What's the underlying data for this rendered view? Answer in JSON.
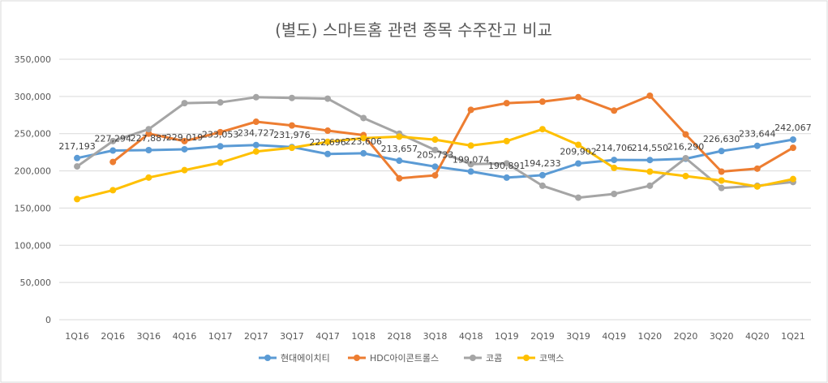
{
  "chart_data": {
    "type": "line",
    "title": "(별도) 스마트홈 관련 종목 수주잔고 비교",
    "xlabel": "",
    "ylabel": "",
    "ylim": [
      0,
      350000
    ],
    "yticks": [
      0,
      50000,
      100000,
      150000,
      200000,
      250000,
      300000,
      350000
    ],
    "ytick_labels": [
      "0",
      "50,000",
      "100,000",
      "150,000",
      "200,000",
      "250,000",
      "300,000",
      "350,000"
    ],
    "grid": true,
    "legend_position": "bottom",
    "categories": [
      "1Q16",
      "2Q16",
      "3Q16",
      "4Q16",
      "1Q17",
      "2Q17",
      "3Q17",
      "4Q17",
      "1Q18",
      "2Q18",
      "3Q18",
      "4Q18",
      "1Q19",
      "2Q19",
      "3Q19",
      "4Q19",
      "1Q20",
      "2Q20",
      "3Q20",
      "4Q20",
      "1Q21"
    ],
    "series": [
      {
        "name": "현대에이치티",
        "color": "#5b9bd5",
        "values": [
          217193,
          227294,
          227887,
          229019,
          233053,
          234727,
          231976,
          222696,
          223606,
          213657,
          205733,
          199074,
          190891,
          194233,
          209902,
          214706,
          214550,
          216290,
          226630,
          233644,
          242067
        ],
        "labels": [
          "217,193",
          "227,294",
          "227,887",
          "229,019",
          "233,053",
          "234,727",
          "231,976",
          "222,696",
          "223,606",
          "213,657",
          "205,733",
          "199,074",
          "190,891",
          "194,233",
          "209,902",
          "214,706",
          "214,550",
          "216,290",
          "226,630",
          "233,644",
          "242,067"
        ]
      },
      {
        "name": "HDC아이콘트롤스",
        "color": "#ed7d31",
        "values": [
          null,
          212000,
          250000,
          240000,
          252000,
          266000,
          261000,
          254000,
          248000,
          190000,
          194000,
          282000,
          291000,
          293000,
          299000,
          281000,
          301000,
          249000,
          199000,
          203000,
          231000
        ],
        "labels": []
      },
      {
        "name": "코콤",
        "color": "#a5a5a5",
        "values": [
          206000,
          240000,
          256000,
          291000,
          292000,
          299000,
          298000,
          297000,
          271000,
          250000,
          228000,
          209000,
          210000,
          180000,
          164000,
          169000,
          180000,
          217000,
          177000,
          180000,
          185000
        ],
        "labels": []
      },
      {
        "name": "코맥스",
        "color": "#ffc000",
        "values": [
          162000,
          174000,
          191000,
          201000,
          211000,
          226000,
          231000,
          239000,
          244000,
          246000,
          242000,
          234000,
          240000,
          256000,
          235000,
          204000,
          199000,
          193000,
          187000,
          179000,
          189000
        ],
        "labels": []
      }
    ]
  }
}
